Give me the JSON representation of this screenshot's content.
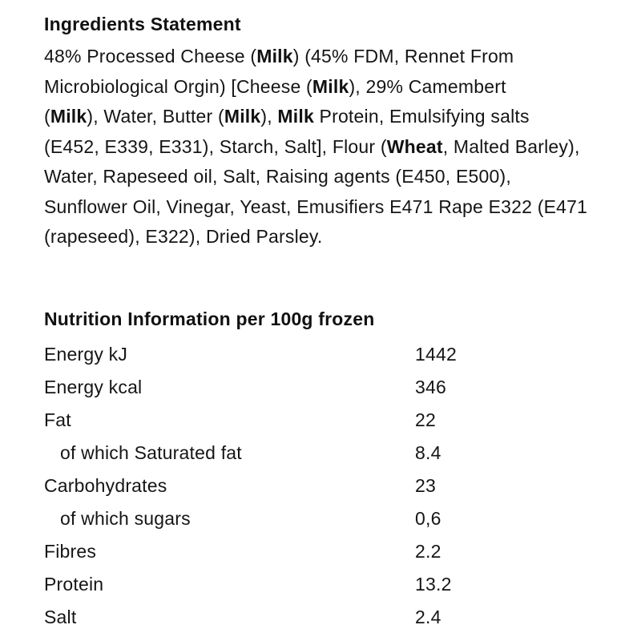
{
  "page": {
    "background": "#ffffff",
    "text_color": "#151515"
  },
  "ingredients": {
    "title": "Ingredients Statement",
    "lines": [
      [
        {
          "t": "48% Processed Cheese ("
        },
        {
          "t": "Milk",
          "b": true
        },
        {
          "t": ") (45% FDM, Rennet From"
        }
      ],
      [
        {
          "t": "Microbiological Orgin) [Cheese ("
        },
        {
          "t": "Milk",
          "b": true
        },
        {
          "t": "), 29% Camembert"
        }
      ],
      [
        {
          "t": "("
        },
        {
          "t": "Milk",
          "b": true
        },
        {
          "t": "), Water, Butter ("
        },
        {
          "t": "Milk",
          "b": true
        },
        {
          "t": "), "
        },
        {
          "t": "Milk",
          "b": true
        },
        {
          "t": " Protein, Emulsifying salts"
        }
      ],
      [
        {
          "t": "(E452, E339, E331), Starch, Salt], Flour ("
        },
        {
          "t": "Wheat",
          "b": true
        },
        {
          "t": ", Malted Barley),"
        }
      ],
      [
        {
          "t": "Water, Rapeseed oil, Salt, Raising agents (E450, E500),"
        }
      ],
      [
        {
          "t": "Sunflower Oil, Vinegar, Yeast, Emusifiers E471 Rape E322 (E471"
        }
      ],
      [
        {
          "t": "(rapeseed), E322), Dried Parsley."
        }
      ]
    ]
  },
  "nutrition": {
    "title": "Nutrition Information per 100g frozen",
    "rows": [
      {
        "label": "Energy kJ",
        "value": "1442",
        "indent": false
      },
      {
        "label": "Energy kcal",
        "value": "346",
        "indent": false
      },
      {
        "label": "Fat",
        "value": "22",
        "indent": false
      },
      {
        "label": "of which Saturated fat",
        "value": "8.4",
        "indent": true
      },
      {
        "label": "Carbohydrates",
        "value": "23",
        "indent": false
      },
      {
        "label": "of which sugars",
        "value": "0,6",
        "indent": true
      },
      {
        "label": "Fibres",
        "value": "2.2",
        "indent": false
      },
      {
        "label": "Protein",
        "value": "13.2",
        "indent": false
      },
      {
        "label": "Salt",
        "value": "2.4",
        "indent": false
      }
    ]
  }
}
